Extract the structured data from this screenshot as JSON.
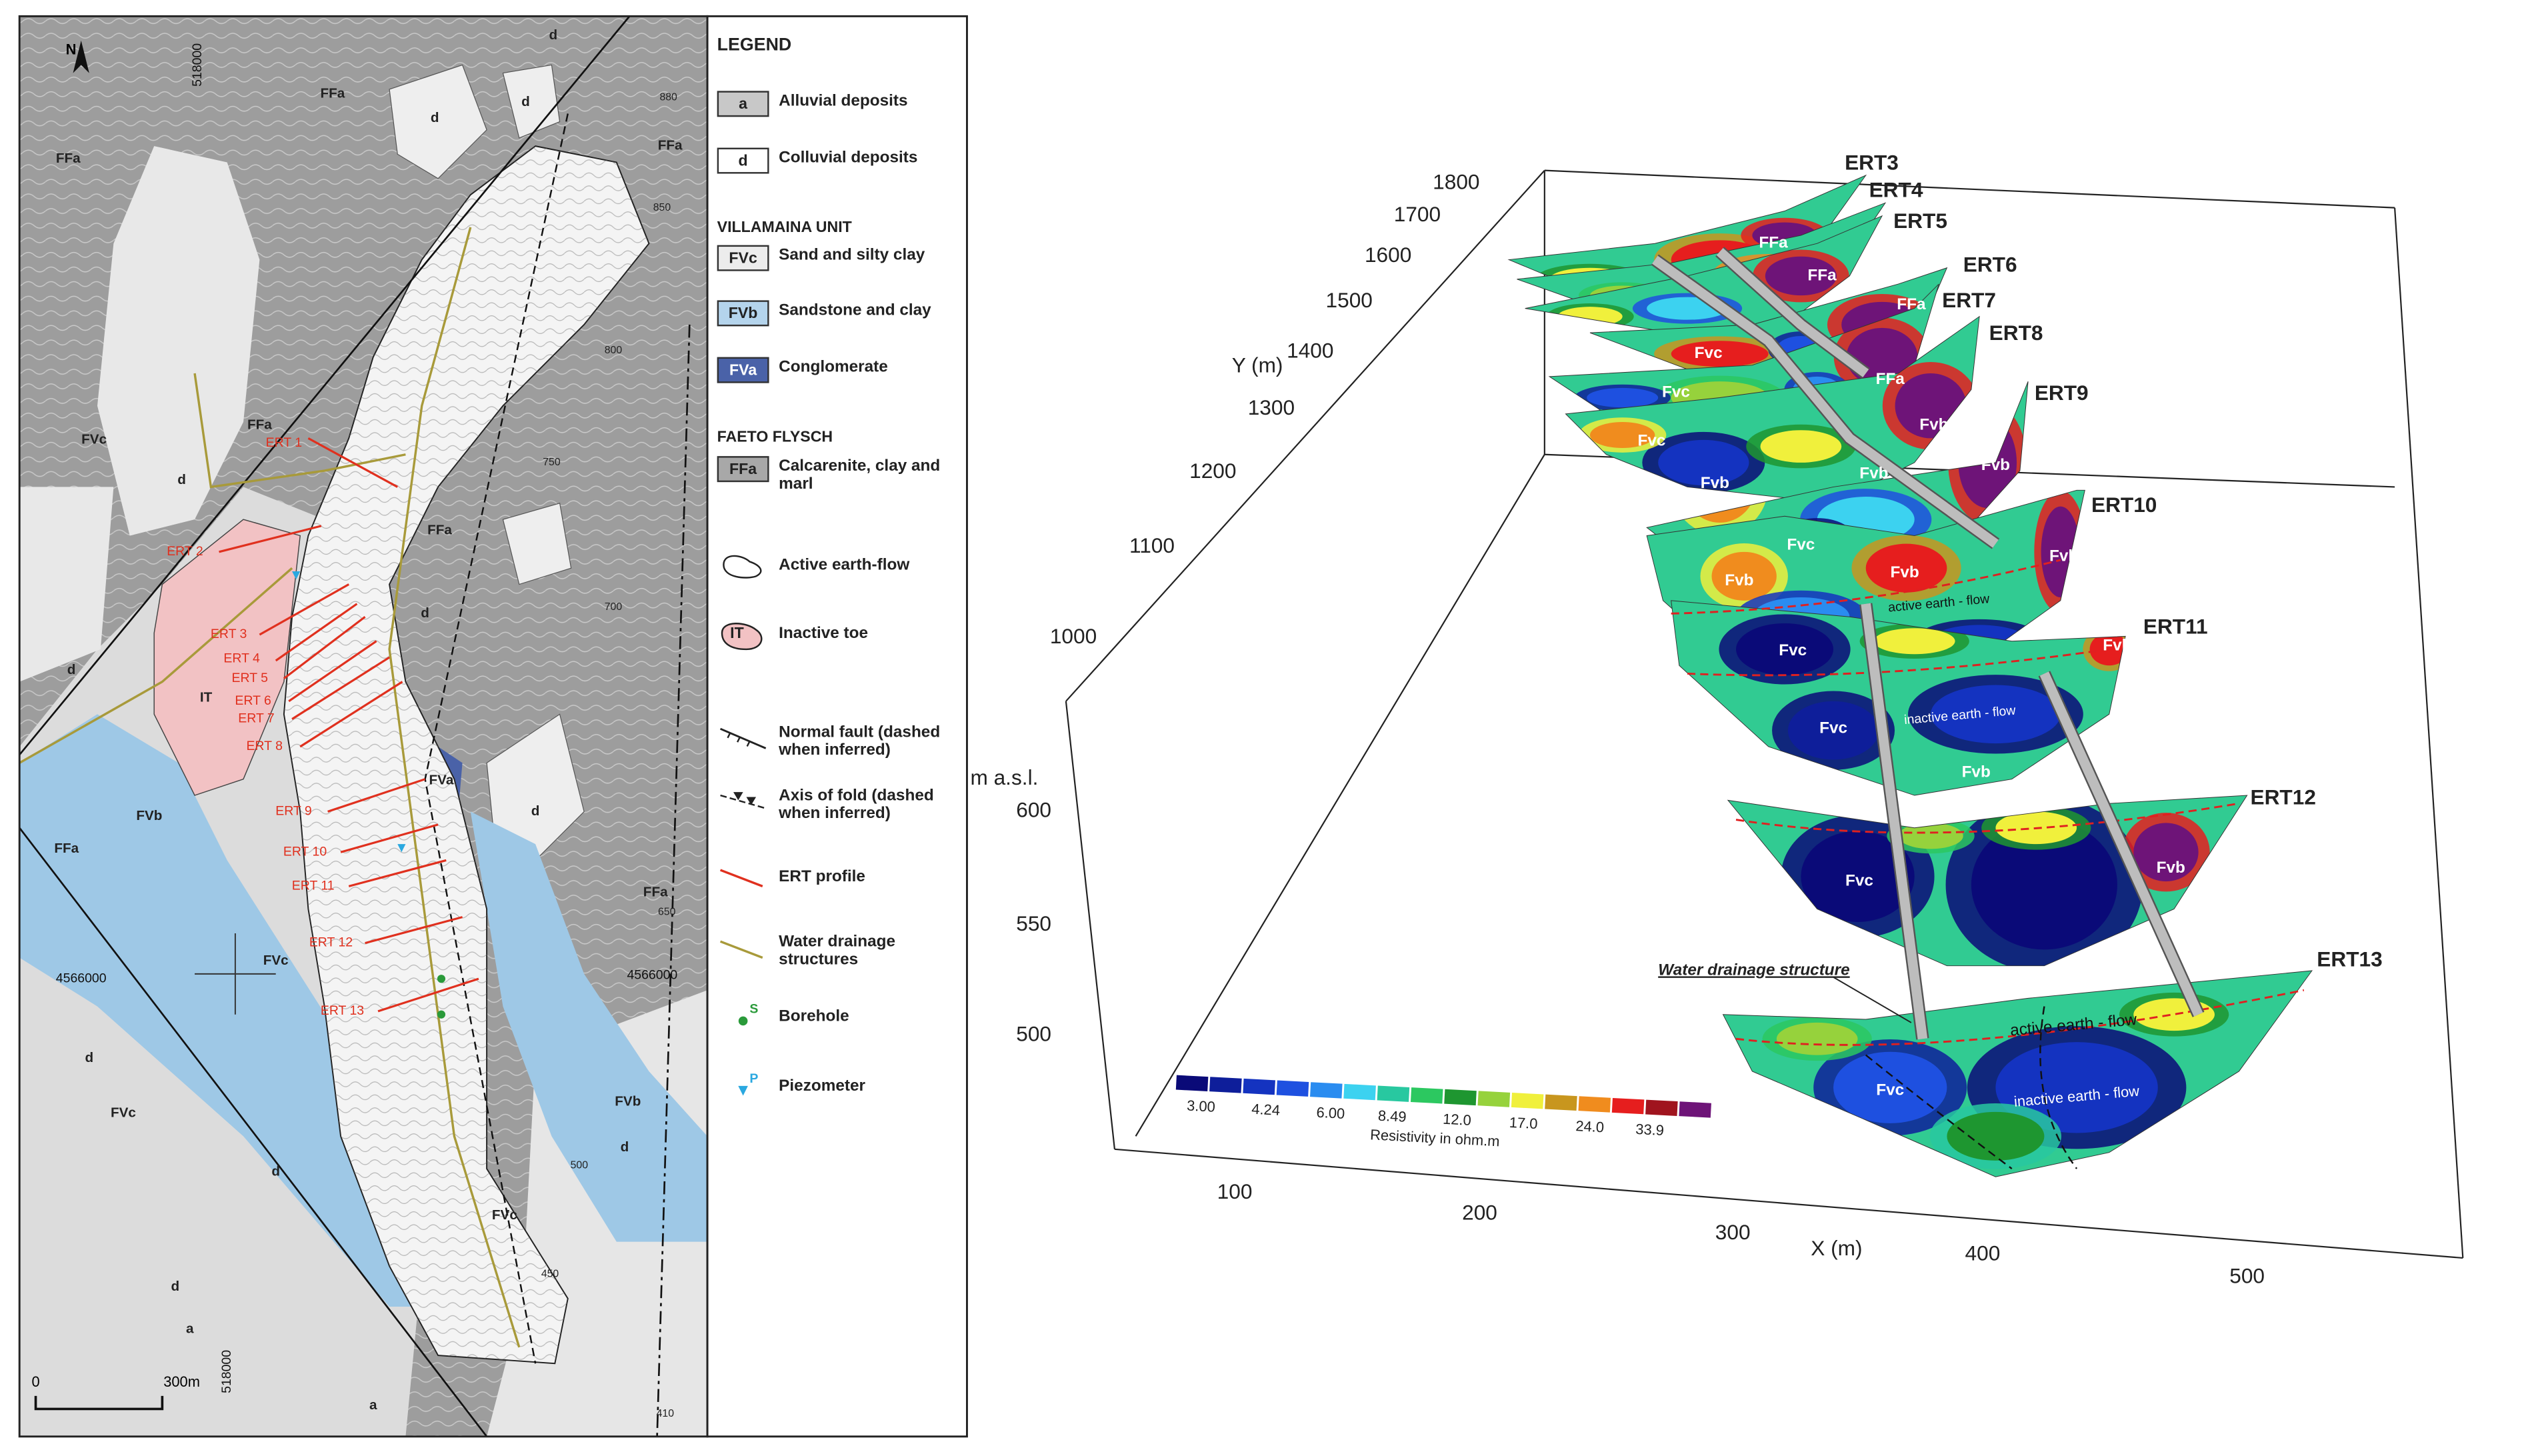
{
  "map": {
    "north": "N",
    "grid_labels": [
      "518000",
      "518000",
      "4566000",
      "4566000"
    ],
    "contour_labels": [
      "880",
      "850",
      "800",
      "750",
      "700",
      "650",
      "500",
      "450",
      "410"
    ],
    "unit_labels": [
      "FFa",
      "FFa",
      "FFa",
      "FFa",
      "FFa",
      "FFa",
      "FFa",
      "d",
      "d",
      "d",
      "d",
      "d",
      "d",
      "d",
      "d",
      "d",
      "d",
      "d",
      "FVc",
      "FVc",
      "FVc",
      "FVc",
      "FVb",
      "FVb",
      "FVa",
      "IT",
      "a",
      "a"
    ],
    "ert_labels": [
      "ERT 1",
      "ERT 2",
      "ERT 3",
      "ERT 4",
      "ERT 5",
      "ERT 6",
      "ERT 7",
      "ERT 8",
      "ERT 9",
      "ERT 10",
      "ERT 11",
      "ERT 12",
      "ERT 13"
    ],
    "scale": [
      "0",
      "300m"
    ]
  },
  "legend": {
    "title": "LEGEND",
    "deposits": [
      {
        "symbol": "a",
        "label": "Alluvial deposits"
      },
      {
        "symbol": "d",
        "label": "Colluvial deposits"
      }
    ],
    "villamaina": {
      "heading": "VILLAMAINA UNIT",
      "items": [
        {
          "symbol": "FVc",
          "label": "Sand and silty clay"
        },
        {
          "symbol": "FVb",
          "label": "Sandstone and clay"
        },
        {
          "symbol": "FVa",
          "label": "Conglomerate"
        }
      ]
    },
    "faeto": {
      "heading": "FAETO FLYSCH",
      "items": [
        {
          "symbol": "FFa",
          "label": "Calcarenite, clay and marl"
        }
      ]
    },
    "features": [
      {
        "label": "Active earth-flow"
      },
      {
        "symbol": "IT",
        "label": "Inactive toe"
      },
      {
        "label": "Normal fault (dashed when inferred)"
      },
      {
        "label": "Axis of fold (dashed when inferred)"
      },
      {
        "label": "ERT profile"
      },
      {
        "label": "Water drainage structures"
      },
      {
        "symbol": "S",
        "label": "Borehole"
      },
      {
        "symbol": "P",
        "label": "Piezometer"
      }
    ]
  },
  "ert3d": {
    "y_axis": {
      "label": "Y (m)",
      "ticks": [
        "1800",
        "1700",
        "1600",
        "1500",
        "1400",
        "1300",
        "1200",
        "1100",
        "1000"
      ]
    },
    "z_axis": {
      "label": "m a.s.l.",
      "ticks": [
        "600",
        "550",
        "500"
      ]
    },
    "x_axis": {
      "label": "X (m)",
      "ticks": [
        "100",
        "200",
        "300",
        "400",
        "500"
      ]
    },
    "profiles": [
      "ERT3",
      "ERT4",
      "ERT5",
      "ERT6",
      "ERT7",
      "ERT8",
      "ERT9",
      "ERT10",
      "ERT11",
      "ERT12",
      "ERT13"
    ],
    "unit_labels": [
      "FFa",
      "FFa",
      "FFa",
      "FFa",
      "Fvc",
      "Fvc",
      "Fvc",
      "Fvc",
      "Fvc",
      "Fvc",
      "Fvc",
      "Fvc",
      "Fvb",
      "Fvb",
      "Fvb",
      "Fvb",
      "Fvb",
      "Fvb",
      "Fvb",
      "Fvb",
      "Fvb",
      "Fvb"
    ],
    "flow_labels": [
      "active earth - flow",
      "inactive earth - flow",
      "active earth - flow",
      "inactive earth - flow"
    ],
    "drainage_label": "Water drainage structure",
    "colorbar": {
      "colors": [
        "#0a0a78",
        "#0e1e9a",
        "#1433c0",
        "#1e50e0",
        "#2a8cf0",
        "#3cd2f0",
        "#28c8a0",
        "#2cc860",
        "#1e9630",
        "#96d23c",
        "#f0f03c",
        "#c8961e",
        "#f08c1e",
        "#e61e1e",
        "#a0141e",
        "#6e1478"
      ],
      "ticks": [
        "3.00",
        "4.24",
        "6.00",
        "8.49",
        "12.0",
        "17.0",
        "24.0",
        "33.9"
      ],
      "label": "Resistivity in ohm.m"
    }
  }
}
